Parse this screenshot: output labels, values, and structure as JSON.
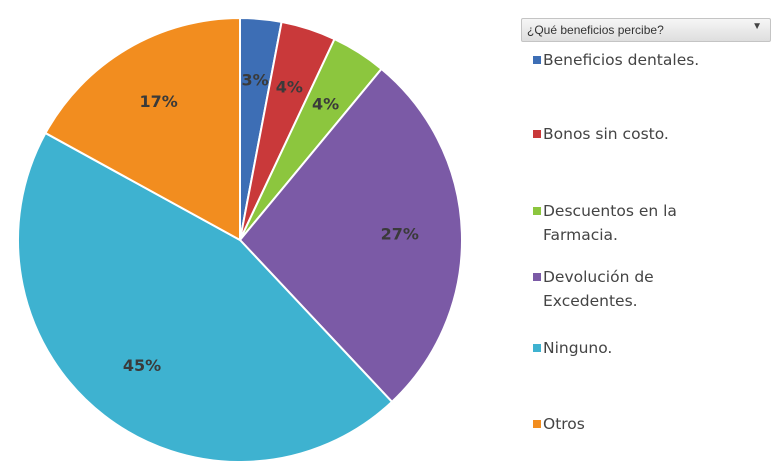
{
  "chart_data": {
    "type": "pie",
    "filter_label": "¿Qué beneficios percibe?",
    "slices": [
      {
        "label": "Beneficios dentales.",
        "value": 3,
        "display": "3%",
        "color": "#3d6eb5"
      },
      {
        "label": "Bonos sin costo.",
        "value": 4,
        "display": "4%",
        "color": "#c9393a"
      },
      {
        "label": "Descuentos en la Farmacia.",
        "value": 4,
        "display": "4%",
        "color": "#8cc63e"
      },
      {
        "label": "Devolución de Excedentes.",
        "value": 27,
        "display": "27%",
        "color": "#7b5aa6"
      },
      {
        "label": "Ninguno.",
        "value": 45,
        "display": "45%",
        "color": "#3eb2d0"
      },
      {
        "label": "Otros",
        "value": 17,
        "display": "17%",
        "color": "#f28d1f"
      }
    ],
    "legend": {
      "position": "right",
      "items": [
        {
          "lines": [
            "Beneficios dentales."
          ],
          "color": "#3d6eb5"
        },
        {
          "lines": [
            "Bonos sin costo."
          ],
          "color": "#c9393a"
        },
        {
          "lines": [
            "Descuentos en la",
            "Farmacia."
          ],
          "color": "#8cc63e"
        },
        {
          "lines": [
            "Devolución de",
            "Excedentes."
          ],
          "color": "#7b5aa6"
        },
        {
          "lines": [
            "Ninguno."
          ],
          "color": "#3eb2d0"
        },
        {
          "lines": [
            "Otros"
          ],
          "color": "#f28d1f"
        }
      ]
    }
  }
}
